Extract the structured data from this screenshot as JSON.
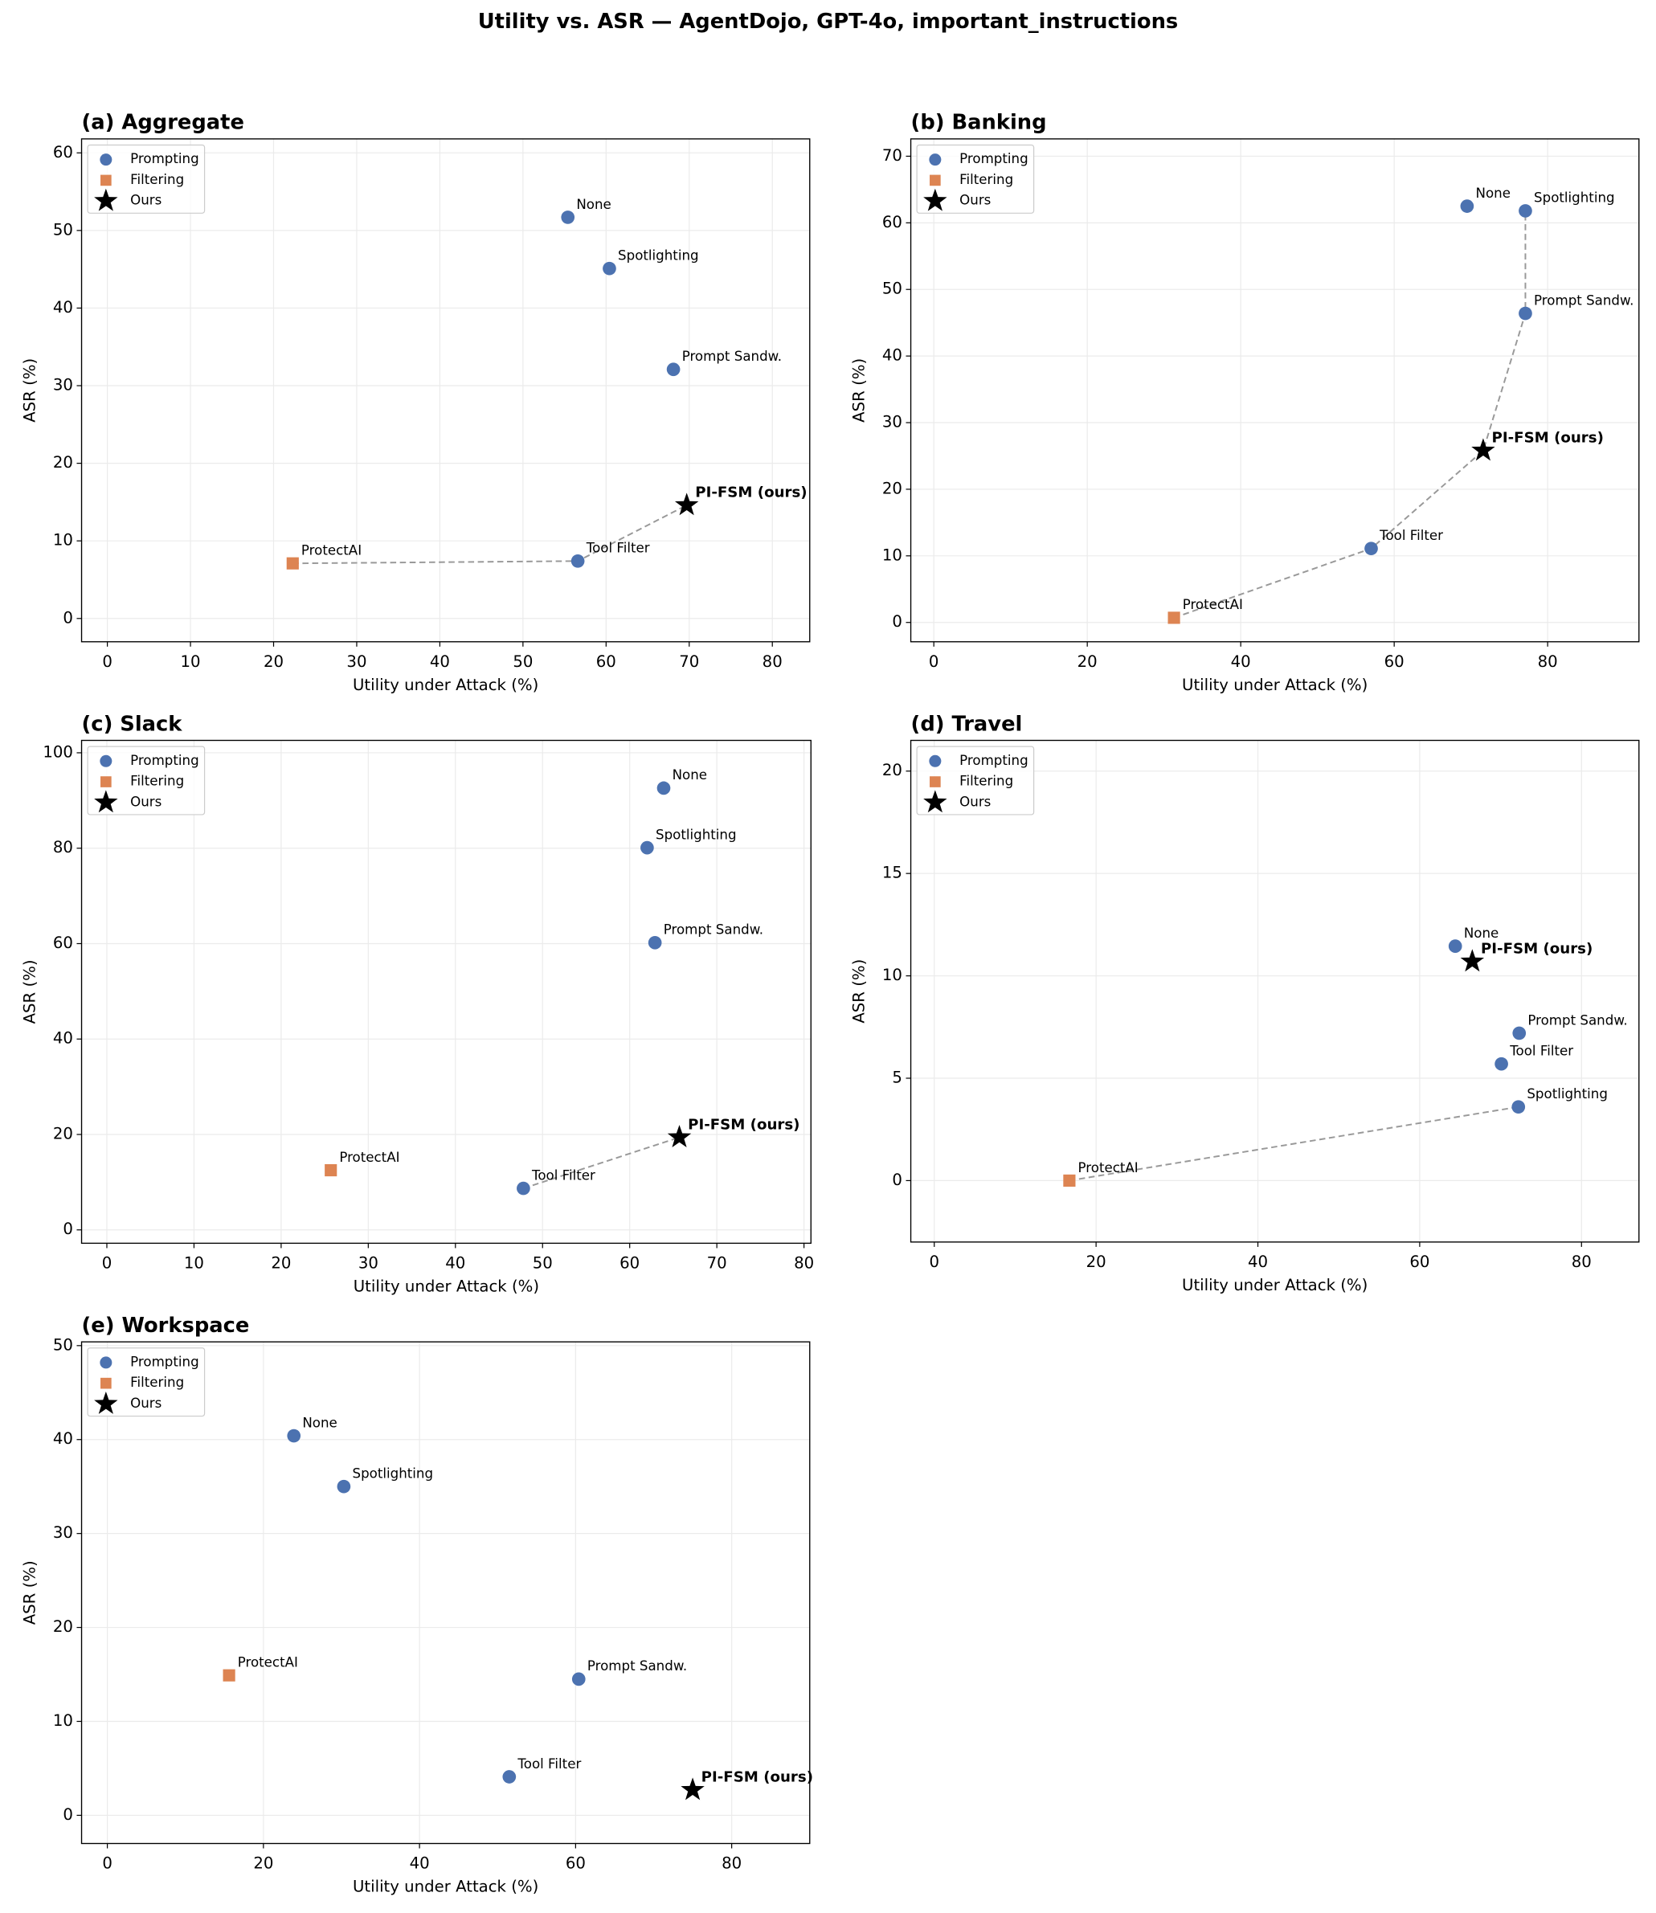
{
  "title": "Utility vs. ASR — AgentDojo, GPT-4o, important_instructions",
  "chart_data": [
    {
      "type": "scatter",
      "title": "(a) Aggregate",
      "x_label": "Utility under Attack (%)",
      "y_label": "ASR (%)",
      "xlim": [
        -3.1,
        84.5
      ],
      "ylim": [
        -3.0,
        61.8
      ],
      "xticks": [
        0,
        10,
        20,
        30,
        40,
        50,
        60,
        70,
        80
      ],
      "yticks": [
        0,
        10,
        20,
        30,
        40,
        50,
        60
      ],
      "grid": true,
      "legend": "upper left",
      "series": [
        {
          "name": "Prompting",
          "color": "#4c72b0",
          "marker": "circle",
          "point_labels": [
            "None",
            "Spotlighting",
            "Prompt Sandw.",
            "Tool Filter"
          ],
          "x": [
            55.4,
            60.4,
            68.1,
            56.6
          ],
          "values": [
            51.7,
            45.1,
            32.1,
            7.4
          ]
        },
        {
          "name": "Filtering",
          "color": "#dd8452",
          "marker": "square",
          "point_labels": [
            "ProtectAI"
          ],
          "x": [
            22.3
          ],
          "values": [
            7.1
          ]
        },
        {
          "name": "Ours",
          "color": "#000000",
          "marker": "star",
          "point_labels": [
            "PI-FSM (ours)"
          ],
          "x": [
            69.7
          ],
          "values": [
            14.6
          ]
        }
      ],
      "frontier": [
        "ProtectAI",
        "Tool Filter",
        "PI-FSM (ours)"
      ]
    },
    {
      "type": "scatter",
      "title": "(b) Banking",
      "x_label": "Utility under Attack (%)",
      "y_label": "ASR (%)",
      "xlim": [
        -3.0,
        91.9
      ],
      "ylim": [
        -2.9,
        72.6
      ],
      "xticks": [
        0,
        20,
        40,
        60,
        80
      ],
      "yticks": [
        0,
        10,
        20,
        30,
        40,
        50,
        60,
        70
      ],
      "grid": true,
      "legend": "upper left",
      "series": [
        {
          "name": "Prompting",
          "color": "#4c72b0",
          "marker": "circle",
          "point_labels": [
            "None",
            "Spotlighting",
            "Prompt Sandw.",
            "Tool Filter"
          ],
          "x": [
            69.5,
            77.1,
            77.1,
            57.0
          ],
          "values": [
            62.5,
            61.8,
            46.4,
            11.1
          ]
        },
        {
          "name": "Filtering",
          "color": "#dd8452",
          "marker": "square",
          "point_labels": [
            "ProtectAI"
          ],
          "x": [
            31.3
          ],
          "values": [
            0.7
          ]
        },
        {
          "name": "Ours",
          "color": "#000000",
          "marker": "star",
          "point_labels": [
            "PI-FSM (ours)"
          ],
          "x": [
            71.6
          ],
          "values": [
            25.8
          ]
        }
      ],
      "frontier": [
        "ProtectAI",
        "Tool Filter",
        "PI-FSM (ours)",
        "Prompt Sandw.",
        "Spotlighting"
      ]
    },
    {
      "type": "scatter",
      "title": "(c) Slack",
      "x_label": "Utility under Attack (%)",
      "y_label": "ASR (%)",
      "xlim": [
        -2.9,
        80.8
      ],
      "ylim": [
        -2.8,
        102.6
      ],
      "xticks": [
        0,
        10,
        20,
        30,
        40,
        50,
        60,
        70,
        80
      ],
      "yticks": [
        0,
        20,
        40,
        60,
        80,
        100
      ],
      "grid": true,
      "legend": "upper left",
      "series": [
        {
          "name": "Prompting",
          "color": "#4c72b0",
          "marker": "circle",
          "point_labels": [
            "None",
            "Spotlighting",
            "Prompt Sandw.",
            "Tool Filter"
          ],
          "x": [
            63.9,
            62.0,
            62.9,
            47.8
          ],
          "values": [
            92.6,
            80.1,
            60.2,
            8.7
          ]
        },
        {
          "name": "Filtering",
          "color": "#dd8452",
          "marker": "square",
          "point_labels": [
            "ProtectAI"
          ],
          "x": [
            25.7
          ],
          "values": [
            12.5
          ]
        },
        {
          "name": "Ours",
          "color": "#000000",
          "marker": "star",
          "point_labels": [
            "PI-FSM (ours)"
          ],
          "x": [
            65.7
          ],
          "values": [
            19.4
          ]
        }
      ],
      "frontier": [
        "Tool Filter",
        "PI-FSM (ours)"
      ]
    },
    {
      "type": "scatter",
      "title": "(d) Travel",
      "x_label": "Utility under Attack (%)",
      "y_label": "ASR (%)",
      "xlim": [
        -2.9,
        87.1
      ],
      "ylim": [
        -3.0,
        21.5
      ],
      "xticks": [
        0,
        20,
        40,
        60,
        80
      ],
      "yticks": [
        0,
        5,
        10,
        15,
        20
      ],
      "grid": true,
      "legend": "upper left",
      "series": [
        {
          "name": "Prompting",
          "color": "#4c72b0",
          "marker": "circle",
          "point_labels": [
            "None",
            "Spotlighting",
            "Prompt Sandw.",
            "Tool Filter"
          ],
          "x": [
            64.4,
            72.2,
            72.3,
            70.1
          ],
          "values": [
            11.45,
            3.6,
            7.2,
            5.7
          ]
        },
        {
          "name": "Filtering",
          "color": "#dd8452",
          "marker": "square",
          "point_labels": [
            "ProtectAI"
          ],
          "x": [
            16.7
          ],
          "values": [
            0.0
          ]
        },
        {
          "name": "Ours",
          "color": "#000000",
          "marker": "star",
          "point_labels": [
            "PI-FSM (ours)"
          ],
          "x": [
            66.5
          ],
          "values": [
            10.7
          ]
        }
      ],
      "frontier": [
        "ProtectAI",
        "Spotlighting"
      ]
    },
    {
      "type": "scatter",
      "title": "(e) Workspace",
      "x_label": "Utility under Attack (%)",
      "y_label": "ASR (%)",
      "xlim": [
        -3.3,
        90.0
      ],
      "ylim": [
        -3.0,
        50.4
      ],
      "xticks": [
        0,
        20,
        40,
        60,
        80
      ],
      "yticks": [
        0,
        10,
        20,
        30,
        40,
        50
      ],
      "grid": true,
      "legend": "upper left",
      "series": [
        {
          "name": "Prompting",
          "color": "#4c72b0",
          "marker": "circle",
          "point_labels": [
            "None",
            "Spotlighting",
            "Prompt Sandw.",
            "Tool Filter"
          ],
          "x": [
            23.9,
            30.3,
            60.4,
            51.5
          ],
          "values": [
            40.4,
            35.0,
            14.5,
            4.1
          ]
        },
        {
          "name": "Filtering",
          "color": "#dd8452",
          "marker": "square",
          "point_labels": [
            "ProtectAI"
          ],
          "x": [
            15.6
          ],
          "values": [
            14.9
          ]
        },
        {
          "name": "Ours",
          "color": "#000000",
          "marker": "star",
          "point_labels": [
            "PI-FSM (ours)"
          ],
          "x": [
            75.0
          ],
          "values": [
            2.7
          ]
        }
      ]
    }
  ]
}
